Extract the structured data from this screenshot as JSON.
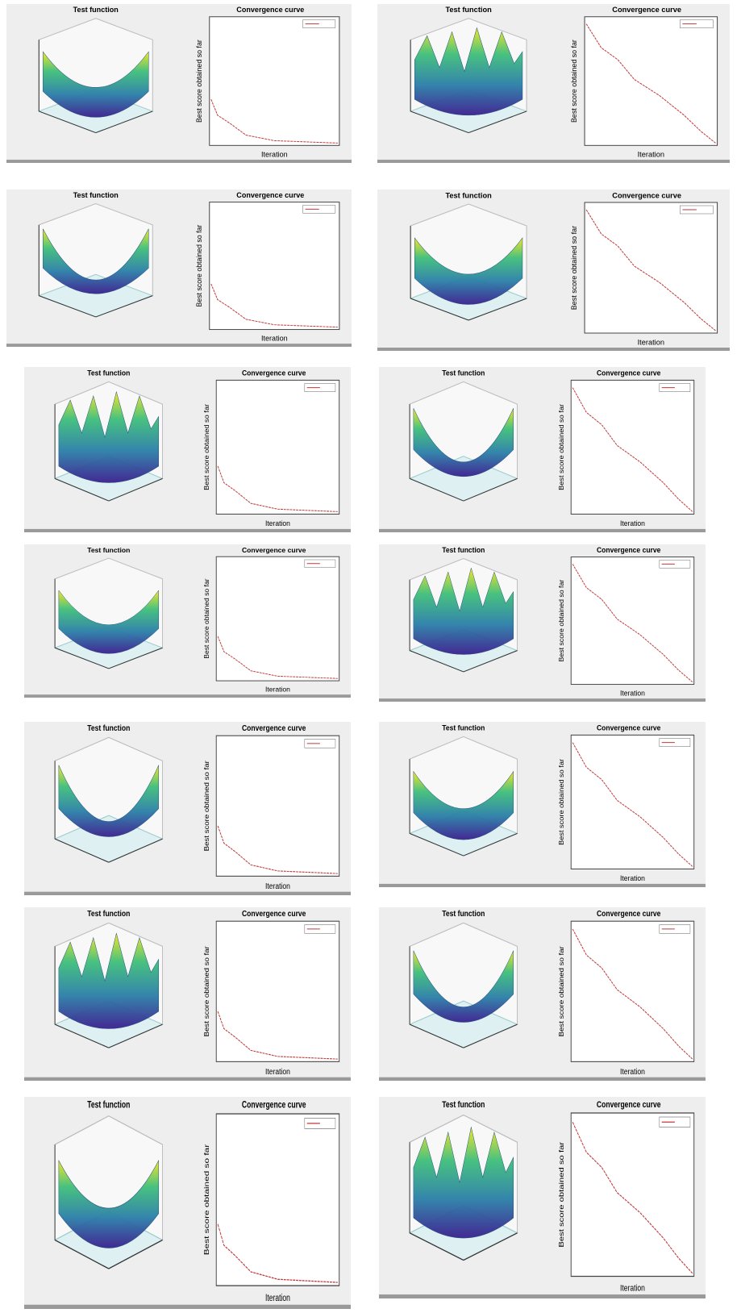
{
  "panels": [
    {
      "left_title": "Test function",
      "right_title": "Convergence curve",
      "x_label": "Iteration",
      "y_label": "Best score obtained so far"
    },
    {
      "left_title": "Test function",
      "right_title": "Convergence curve",
      "x_label": "Iteration",
      "y_label": "Best score obtained so far"
    },
    {
      "left_title": "Test function",
      "right_title": "Convergence curve",
      "x_label": "Iteration",
      "y_label": "Best score obtained so far"
    },
    {
      "left_title": "Test function",
      "right_title": "Convergence curve",
      "x_label": "Iteration",
      "y_label": "Best score obtained so far"
    },
    {
      "left_title": "Test function",
      "right_title": "Convergence curve",
      "x_label": "Iteration",
      "y_label": "Best score obtained so far"
    },
    {
      "left_title": "Test function",
      "right_title": "Convergence curve",
      "x_label": "Iteration",
      "y_label": "Best score obtained so far"
    },
    {
      "left_title": "Test function",
      "right_title": "Convergence curve",
      "x_label": "Iteration",
      "y_label": "Best score obtained so far"
    },
    {
      "left_title": "Test function",
      "right_title": "Convergence curve",
      "x_label": "Iteration",
      "y_label": "Best score obtained so far"
    },
    {
      "left_title": "Test function",
      "right_title": "Convergence curve",
      "x_label": "Iteration",
      "y_label": "Best score obtained so far"
    },
    {
      "left_title": "Test function",
      "right_title": "Convergence curve",
      "x_label": "Iteration",
      "y_label": "Best score obtained so far"
    },
    {
      "left_title": "Test function",
      "right_title": "Convergence curve",
      "x_label": "Iteration",
      "y_label": "Best score obtained so far"
    },
    {
      "left_title": "Test function",
      "right_title": "Convergence curve",
      "x_label": "Iteration",
      "y_label": "Best score obtained so far"
    },
    {
      "left_title": "Test function",
      "right_title": "Convergence curve",
      "x_label": "Iteration",
      "y_label": "Best score obtained so far"
    },
    {
      "left_title": "Test function",
      "right_title": "Convergence curve",
      "x_label": "Iteration",
      "y_label": "Best score obtained so far"
    }
  ]
}
